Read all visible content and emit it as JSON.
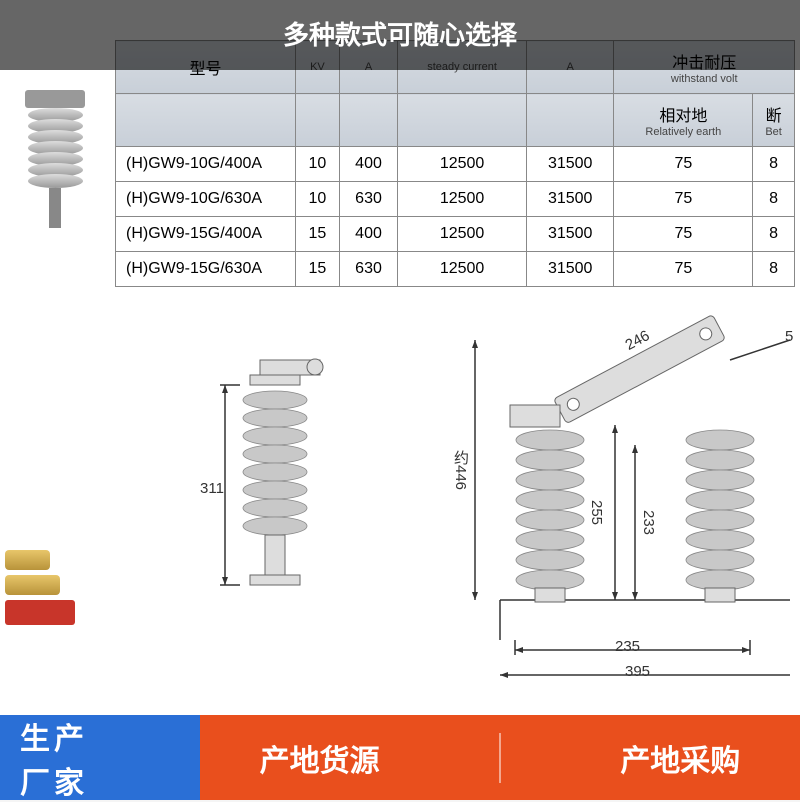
{
  "topBanner": "多种款式可随心选择",
  "table": {
    "headers": [
      {
        "main": "型号",
        "sub": ""
      },
      {
        "main": "",
        "sub": "KV"
      },
      {
        "main": "",
        "sub": "A"
      },
      {
        "main": "",
        "sub": "steady current"
      },
      {
        "main": "",
        "sub": "A"
      },
      {
        "main": "冲击耐压",
        "sub": "withstand volt"
      },
      {
        "main": "相对地",
        "sub": "Relatively earth"
      },
      {
        "main": "断",
        "sub": "Bet"
      }
    ],
    "rows": [
      {
        "model": "(H)GW9-10G/400A",
        "kv": "10",
        "a1": "400",
        "steady": "12500",
        "a2": "31500",
        "earth": "75",
        "bet": "8"
      },
      {
        "model": "(H)GW9-10G/630A",
        "kv": "10",
        "a1": "630",
        "steady": "12500",
        "a2": "31500",
        "earth": "75",
        "bet": "8"
      },
      {
        "model": "(H)GW9-15G/400A",
        "kv": "15",
        "a1": "400",
        "steady": "12500",
        "a2": "31500",
        "earth": "75",
        "bet": "8"
      },
      {
        "model": "(H)GW9-15G/630A",
        "kv": "15",
        "a1": "630",
        "steady": "12500",
        "a2": "31500",
        "earth": "75",
        "bet": "8"
      }
    ]
  },
  "dimensions": {
    "d311": "311",
    "d246": "246",
    "d5": "5",
    "d446": "约446",
    "d255": "255",
    "d233": "233",
    "d235": "235",
    "d395": "395"
  },
  "bottomLeft": {
    "line1": "生产",
    "line2": "厂家"
  },
  "bottomRight": {
    "item1": "产地货源",
    "item2": "产地采购"
  },
  "colors": {
    "topBannerBg": "rgba(0,0,0,0.6)",
    "blueBg": "#2a6fd6",
    "orangeBg": "#e94f1d",
    "tableHeaderBg": "#d0d6de"
  }
}
